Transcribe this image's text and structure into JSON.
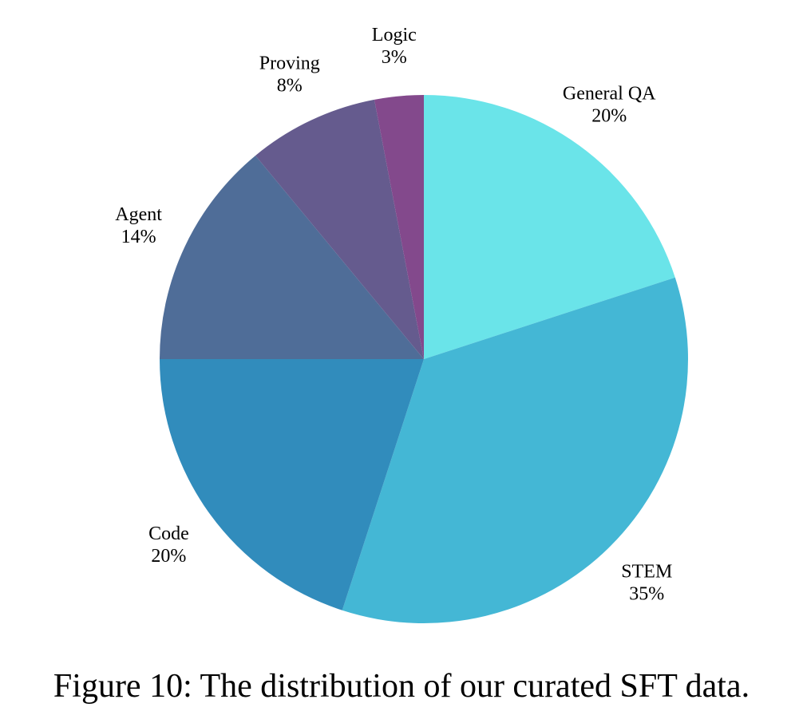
{
  "caption": "Figure 10: The distribution of our curated SFT data.",
  "chart_data": {
    "type": "pie",
    "title": "",
    "start": "top",
    "direction": "clockwise",
    "labels_show_percent": true,
    "slices": [
      {
        "label": "General QA",
        "value": 20,
        "pct_label": "20%",
        "color": "#6ae4e9"
      },
      {
        "label": "STEM",
        "value": 35,
        "pct_label": "35%",
        "color": "#44b7d5"
      },
      {
        "label": "Code",
        "value": 20,
        "pct_label": "20%",
        "color": "#318cbc"
      },
      {
        "label": "Agent",
        "value": 14,
        "pct_label": "14%",
        "color": "#4f6d98"
      },
      {
        "label": "Proving",
        "value": 8,
        "pct_label": "8%",
        "color": "#655b8e"
      },
      {
        "label": "Logic",
        "value": 3,
        "pct_label": "3%",
        "color": "#83498c"
      }
    ]
  }
}
